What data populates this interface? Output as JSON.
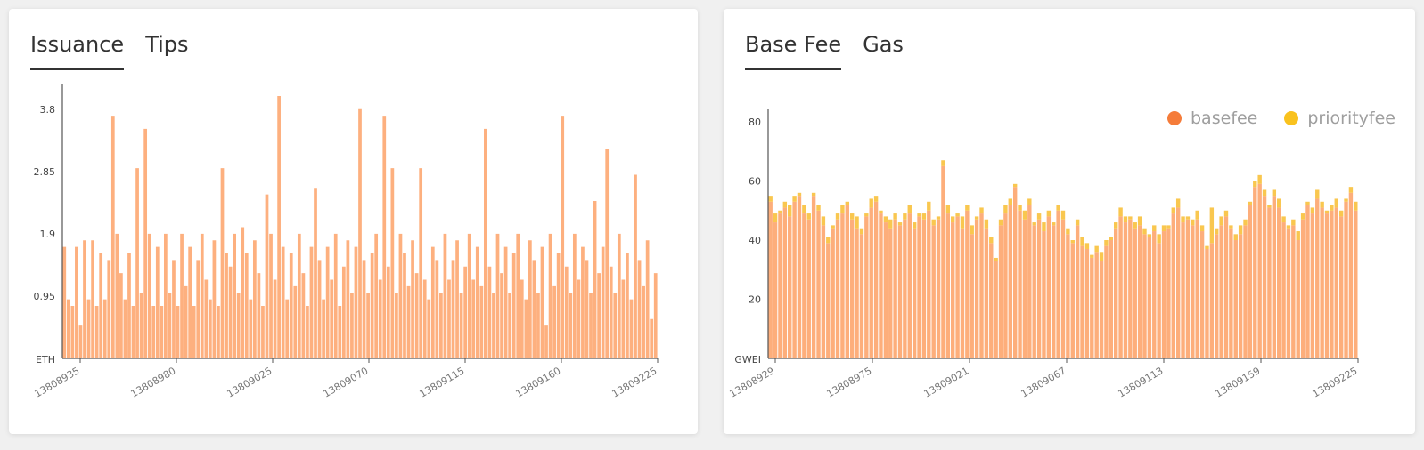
{
  "left_panel": {
    "tabs": [
      {
        "label": "Issuance",
        "active": true
      },
      {
        "label": "Tips",
        "active": false
      }
    ]
  },
  "right_panel": {
    "tabs": [
      {
        "label": "Base Fee",
        "active": true
      },
      {
        "label": "Gas",
        "active": false
      }
    ],
    "legend": [
      {
        "label": "basefee",
        "color": "#f57c3a"
      },
      {
        "label": "priorityfee",
        "color": "#f9c21e"
      }
    ]
  },
  "chart_data": [
    {
      "type": "bar",
      "ylabel": "ETH",
      "yticks": [
        "3.8",
        "2.85",
        "1.9",
        "0.95"
      ],
      "ylim": [
        0,
        4.0
      ],
      "xticks": [
        "13808935",
        "13808980",
        "13809025",
        "13809070",
        "13809115",
        "13809160",
        "13809225"
      ],
      "series": [
        {
          "color": "#fdb07f",
          "values": [
            1.7,
            0.9,
            0.8,
            1.7,
            0.5,
            1.8,
            0.9,
            1.8,
            0.8,
            1.6,
            0.9,
            1.5,
            3.7,
            1.9,
            1.3,
            0.9,
            1.6,
            0.8,
            2.9,
            1.0,
            3.5,
            1.9,
            0.8,
            1.7,
            0.8,
            1.9,
            1.0,
            1.5,
            0.8,
            1.9,
            1.1,
            1.7,
            0.8,
            1.5,
            1.9,
            1.2,
            0.9,
            1.8,
            0.8,
            2.9,
            1.6,
            1.4,
            1.9,
            1.0,
            2.0,
            1.6,
            0.9,
            1.8,
            1.3,
            0.8,
            2.5,
            1.9,
            1.2,
            4.0,
            1.7,
            0.9,
            1.6,
            1.1,
            1.9,
            1.3,
            0.8,
            1.7,
            2.6,
            1.5,
            0.9,
            1.7,
            1.2,
            1.9,
            0.8,
            1.4,
            1.8,
            1.0,
            1.7,
            3.8,
            1.5,
            1.0,
            1.6,
            1.9,
            1.2,
            3.7,
            1.4,
            2.9,
            1.0,
            1.9,
            1.6,
            1.1,
            1.8,
            1.3,
            2.9,
            1.2,
            0.9,
            1.7,
            1.5,
            1.0,
            1.9,
            1.2,
            1.5,
            1.8,
            1.0,
            1.4,
            1.9,
            1.2,
            1.7,
            1.1,
            3.5,
            1.4,
            1.0,
            1.9,
            1.3,
            1.7,
            1.0,
            1.6,
            1.9,
            1.2,
            0.9,
            1.8,
            1.5,
            1.0,
            1.7,
            0.5,
            1.9,
            1.1,
            1.6,
            3.7,
            1.4,
            1.0,
            1.9,
            1.2,
            1.7,
            1.5,
            1.0,
            2.4,
            1.3,
            1.7,
            3.2,
            1.4,
            1.0,
            1.9,
            1.2,
            1.6,
            0.9,
            2.8,
            1.5,
            1.1,
            1.8,
            0.6,
            1.3
          ]
        }
      ]
    },
    {
      "type": "bar",
      "stacked": true,
      "ylabel": "GWEI",
      "yticks": [
        "80",
        "60",
        "40",
        "20"
      ],
      "ylim": [
        0,
        80
      ],
      "xticks": [
        "13808929",
        "13808975",
        "13809021",
        "13809067",
        "13809113",
        "13809159",
        "13809225"
      ],
      "series": [
        {
          "name": "basefee",
          "color": "#fdae7b",
          "values": [
            53,
            46,
            49,
            51,
            48,
            53,
            55,
            49,
            47,
            55,
            50,
            45,
            39,
            44,
            47,
            49,
            52,
            47,
            44,
            42,
            48,
            51,
            53,
            49,
            46,
            44,
            47,
            45,
            47,
            49,
            44,
            48,
            47,
            50,
            45,
            47,
            65,
            49,
            46,
            48,
            44,
            50,
            42,
            47,
            49,
            44,
            39,
            33,
            45,
            49,
            52,
            58,
            50,
            47,
            52,
            45,
            47,
            43,
            48,
            45,
            50,
            47,
            42,
            39,
            45,
            38,
            37,
            34,
            36,
            33,
            38,
            40,
            44,
            48,
            46,
            47,
            44,
            45,
            42,
            41,
            43,
            39,
            43,
            44,
            49,
            51,
            46,
            47,
            45,
            47,
            43,
            37,
            39,
            42,
            45,
            48,
            44,
            40,
            42,
            45,
            52,
            58,
            59,
            55,
            51,
            55,
            51,
            46,
            44,
            45,
            40,
            47,
            52,
            49,
            54,
            51,
            49,
            50,
            51,
            48,
            53,
            56,
            50
          ]
        },
        {
          "name": "priorityfee",
          "color": "#f9c74f",
          "values": [
            2,
            3,
            1,
            2,
            4,
            2,
            1,
            3,
            2,
            1,
            2,
            3,
            2,
            1,
            2,
            3,
            1,
            2,
            4,
            2,
            1,
            3,
            2,
            1,
            2,
            3,
            2,
            1,
            2,
            3,
            2,
            1,
            2,
            3,
            2,
            1,
            2,
            3,
            2,
            1,
            4,
            2,
            3,
            1,
            2,
            3,
            2,
            1,
            2,
            3,
            2,
            1,
            2,
            3,
            2,
            1,
            2,
            3,
            2,
            1,
            2,
            3,
            2,
            1,
            2,
            3,
            2,
            1,
            2,
            3,
            2,
            1,
            2,
            3,
            2,
            1,
            2,
            3,
            2,
            1,
            2,
            3,
            2,
            1,
            2,
            3,
            2,
            1,
            2,
            3,
            2,
            1,
            12,
            2,
            3,
            2,
            1,
            2,
            3,
            2,
            1,
            2,
            3,
            2,
            1,
            2,
            3,
            2,
            1,
            2,
            3,
            2,
            1,
            2,
            3,
            2,
            1,
            2,
            3,
            2,
            1,
            2,
            3
          ]
        }
      ]
    }
  ]
}
